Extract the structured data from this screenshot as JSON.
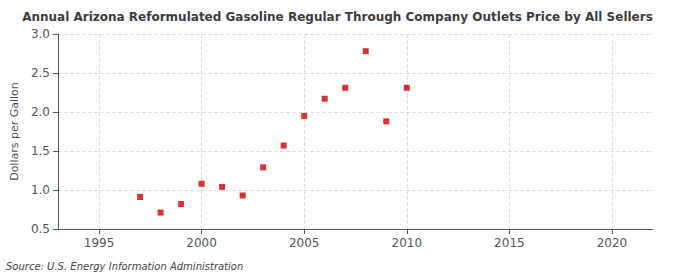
{
  "chart_data": {
    "type": "scatter",
    "title": "Annual Arizona Reformulated Gasoline Regular Through Company Outlets Price by All Sellers",
    "ylabel": "Dollars per Gallon",
    "source": "Source: U.S. Energy Information Administration",
    "x": [
      1997,
      1998,
      1999,
      2000,
      2001,
      2002,
      2003,
      2004,
      2005,
      2006,
      2007,
      2008,
      2009,
      2010
    ],
    "values": [
      0.91,
      0.71,
      0.82,
      1.08,
      1.04,
      0.93,
      1.29,
      1.57,
      1.95,
      2.17,
      2.31,
      2.78,
      1.88,
      2.31
    ],
    "color": "#cc0000",
    "marker": "square",
    "xlim": [
      1993,
      2022
    ],
    "xticks": [
      1995,
      2000,
      2005,
      2010,
      2015,
      2020
    ],
    "ylim": [
      0.5,
      3.0
    ],
    "yticks": [
      0.5,
      {
        "value": 1.0,
        "label": "1.0"
      },
      1.5,
      {
        "value": 2.0,
        "label": "2.0"
      },
      2.5,
      {
        "value": 3.0,
        "label": "3.0"
      }
    ],
    "grid": true
  }
}
